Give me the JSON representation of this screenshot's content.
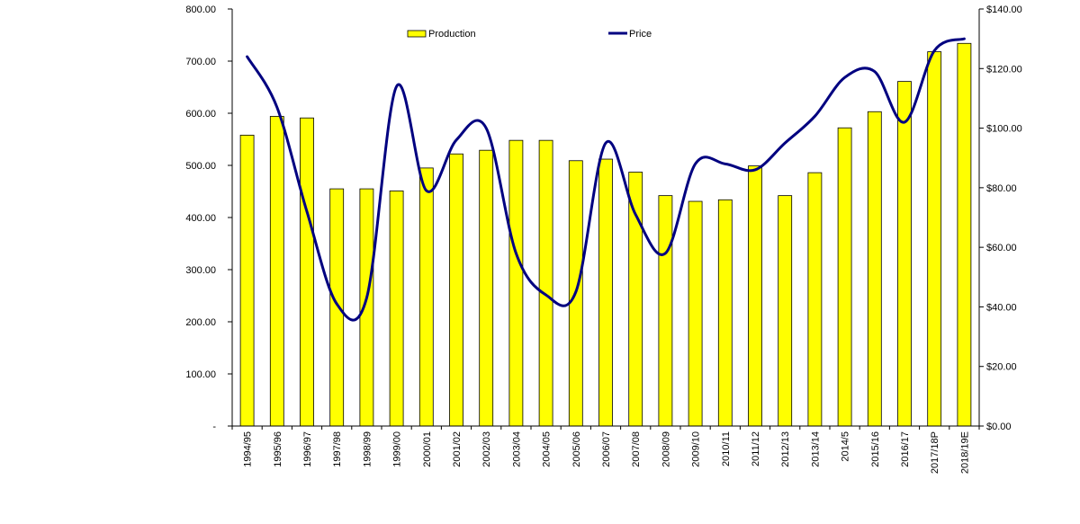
{
  "chart_data": {
    "type": "bar+line",
    "title": "",
    "categories": [
      "1994/95",
      "1995/96",
      "1996/97",
      "1997/98",
      "1998/99",
      "1999/00",
      "2000/01",
      "2001/02",
      "2002/03",
      "2003/04",
      "2004/05",
      "2005/06",
      "2006/07",
      "2007/08",
      "2008/09",
      "2009/10",
      "2010/11",
      "2011/12",
      "2012/13",
      "2013/14",
      "2014/5",
      "2015/16",
      "2016/17",
      "2017/18P",
      "2018/19E"
    ],
    "series": [
      {
        "name": "Production",
        "type": "bar",
        "axis": "left",
        "color": "#ffff00",
        "values": [
          558,
          594,
          591,
          455,
          455,
          451,
          495,
          522,
          529,
          548,
          548,
          509,
          512,
          487,
          442,
          431,
          434,
          499,
          442,
          486,
          572,
          603,
          661,
          718,
          734
        ]
      },
      {
        "name": "Price",
        "type": "line",
        "axis": "right",
        "color": "#000080",
        "values": [
          124,
          107,
          72,
          41,
          43,
          114,
          79,
          96,
          100,
          58,
          44,
          45,
          95,
          71,
          58,
          88,
          88,
          86,
          95,
          104,
          117,
          119,
          102,
          126,
          130
        ]
      }
    ],
    "y_left": {
      "range": [
        0,
        800
      ],
      "ticks": [
        0,
        100,
        200,
        300,
        400,
        500,
        600,
        700,
        800
      ],
      "tick_labels": [
        "-",
        "100.00",
        "200.00",
        "300.00",
        "400.00",
        "500.00",
        "600.00",
        "700.00",
        "800.00"
      ]
    },
    "y_right": {
      "range": [
        0,
        140
      ],
      "ticks": [
        0,
        20,
        40,
        60,
        80,
        100,
        120,
        140
      ],
      "tick_labels": [
        "$0.00",
        "$20.00",
        "$40.00",
        "$60.00",
        "$80.00",
        "$100.00",
        "$120.00",
        "$140.00"
      ]
    },
    "xlabel": "",
    "ylabel": "",
    "legend": {
      "placement": "top-center",
      "entries": [
        "Production",
        "Price"
      ]
    },
    "grid": false
  }
}
